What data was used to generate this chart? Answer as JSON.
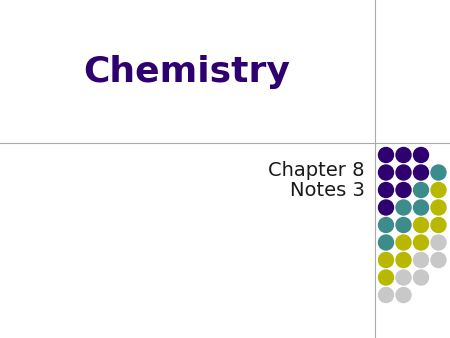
{
  "title": "Chemistry",
  "subtitle_line1": "Chapter 8",
  "subtitle_line2": "Notes 3",
  "bg_color": "#ffffff",
  "title_color": "#2e0070",
  "subtitle_color": "#1a1a1a",
  "title_fontsize": 26,
  "subtitle_fontsize": 14,
  "divider_color": "#aaaaaa",
  "purple": "#2e0070",
  "teal": "#3d8c8c",
  "yellow": "#b8b800",
  "gray": "#c8c8c8",
  "dot_rows": [
    [
      "purple",
      "purple",
      "purple"
    ],
    [
      "purple",
      "purple",
      "purple",
      "teal"
    ],
    [
      "purple",
      "purple",
      "teal",
      "yellow"
    ],
    [
      "purple",
      "teal",
      "teal",
      "yellow"
    ],
    [
      "teal",
      "teal",
      "yellow",
      "yellow"
    ],
    [
      "teal",
      "yellow",
      "yellow",
      "gray"
    ],
    [
      "yellow",
      "yellow",
      "gray",
      "gray"
    ],
    [
      "yellow",
      "gray",
      "gray"
    ],
    [
      "gray",
      "gray"
    ]
  ]
}
